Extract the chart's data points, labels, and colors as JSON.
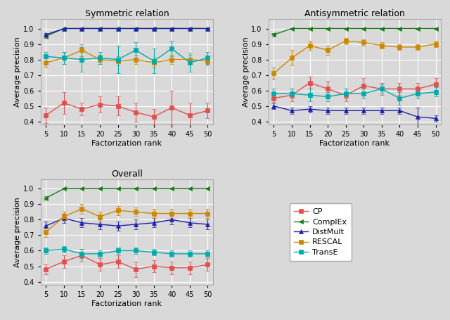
{
  "ranks": [
    5,
    10,
    15,
    20,
    25,
    30,
    35,
    40,
    45,
    50
  ],
  "symmetric": {
    "CP": {
      "y": [
        0.44,
        0.52,
        0.48,
        0.51,
        0.5,
        0.46,
        0.43,
        0.49,
        0.44,
        0.47
      ],
      "yerr": [
        0.05,
        0.07,
        0.04,
        0.05,
        0.06,
        0.06,
        0.05,
        0.11,
        0.08,
        0.05
      ]
    },
    "ComplEx": {
      "y": [
        0.95,
        1.0,
        1.0,
        1.0,
        1.0,
        1.0,
        1.0,
        1.0,
        1.0,
        1.0
      ],
      "yerr": [
        0.01,
        0.0,
        0.0,
        0.0,
        0.0,
        0.0,
        0.0,
        0.0,
        0.0,
        0.0
      ]
    },
    "DistMult": {
      "y": [
        0.96,
        1.0,
        1.0,
        1.0,
        1.0,
        1.0,
        1.0,
        1.0,
        1.0,
        1.0
      ],
      "yerr": [
        0.01,
        0.0,
        0.0,
        0.0,
        0.0,
        0.0,
        0.0,
        0.0,
        0.0,
        0.0
      ]
    },
    "RESCAL": {
      "y": [
        0.78,
        0.81,
        0.86,
        0.8,
        0.79,
        0.8,
        0.78,
        0.8,
        0.8,
        0.79
      ],
      "yerr": [
        0.03,
        0.04,
        0.04,
        0.03,
        0.03,
        0.03,
        0.03,
        0.03,
        0.03,
        0.03
      ]
    },
    "TransE": {
      "y": [
        0.82,
        0.81,
        0.8,
        0.81,
        0.8,
        0.86,
        0.79,
        0.87,
        0.78,
        0.81
      ],
      "yerr": [
        0.03,
        0.04,
        0.08,
        0.04,
        0.09,
        0.05,
        0.08,
        0.05,
        0.06,
        0.04
      ]
    }
  },
  "antisymmetric": {
    "CP": {
      "y": [
        0.55,
        0.57,
        0.65,
        0.61,
        0.57,
        0.63,
        0.61,
        0.61,
        0.61,
        0.64
      ],
      "yerr": [
        0.03,
        0.04,
        0.04,
        0.05,
        0.04,
        0.05,
        0.04,
        0.04,
        0.04,
        0.04
      ]
    },
    "ComplEx": {
      "y": [
        0.96,
        1.0,
        1.0,
        1.0,
        1.0,
        1.0,
        1.0,
        1.0,
        1.0,
        1.0
      ],
      "yerr": [
        0.01,
        0.0,
        0.0,
        0.0,
        0.0,
        0.0,
        0.0,
        0.0,
        0.0,
        0.0
      ]
    },
    "DistMult": {
      "y": [
        0.5,
        0.47,
        0.48,
        0.47,
        0.47,
        0.47,
        0.47,
        0.47,
        0.43,
        0.42
      ],
      "yerr": [
        0.02,
        0.02,
        0.02,
        0.02,
        0.02,
        0.02,
        0.02,
        0.02,
        0.06,
        0.02
      ]
    },
    "RESCAL": {
      "y": [
        0.71,
        0.81,
        0.89,
        0.86,
        0.92,
        0.91,
        0.89,
        0.88,
        0.88,
        0.9
      ],
      "yerr": [
        0.04,
        0.05,
        0.03,
        0.03,
        0.02,
        0.02,
        0.02,
        0.02,
        0.02,
        0.02
      ]
    },
    "TransE": {
      "y": [
        0.58,
        0.58,
        0.57,
        0.56,
        0.58,
        0.58,
        0.61,
        0.55,
        0.58,
        0.59
      ],
      "yerr": [
        0.03,
        0.03,
        0.04,
        0.03,
        0.03,
        0.03,
        0.03,
        0.04,
        0.03,
        0.03
      ]
    }
  },
  "overall": {
    "CP": {
      "y": [
        0.48,
        0.53,
        0.57,
        0.51,
        0.53,
        0.48,
        0.5,
        0.49,
        0.49,
        0.51
      ],
      "yerr": [
        0.03,
        0.04,
        0.04,
        0.04,
        0.04,
        0.05,
        0.04,
        0.04,
        0.04,
        0.04
      ]
    },
    "ComplEx": {
      "y": [
        0.94,
        1.0,
        1.0,
        1.0,
        1.0,
        1.0,
        1.0,
        1.0,
        1.0,
        1.0
      ],
      "yerr": [
        0.01,
        0.0,
        0.0,
        0.0,
        0.0,
        0.0,
        0.0,
        0.0,
        0.0,
        0.0
      ]
    },
    "DistMult": {
      "y": [
        0.76,
        0.81,
        0.78,
        0.77,
        0.76,
        0.77,
        0.78,
        0.8,
        0.78,
        0.77
      ],
      "yerr": [
        0.03,
        0.03,
        0.03,
        0.03,
        0.03,
        0.03,
        0.03,
        0.03,
        0.03,
        0.03
      ]
    },
    "RESCAL": {
      "y": [
        0.72,
        0.82,
        0.87,
        0.82,
        0.86,
        0.85,
        0.84,
        0.84,
        0.84,
        0.84
      ],
      "yerr": [
        0.03,
        0.03,
        0.03,
        0.03,
        0.03,
        0.03,
        0.03,
        0.03,
        0.03,
        0.03
      ]
    },
    "TransE": {
      "y": [
        0.6,
        0.61,
        0.58,
        0.58,
        0.6,
        0.6,
        0.59,
        0.58,
        0.58,
        0.58
      ],
      "yerr": [
        0.02,
        0.02,
        0.03,
        0.02,
        0.02,
        0.02,
        0.02,
        0.02,
        0.02,
        0.02
      ]
    }
  },
  "models": [
    "CP",
    "ComplEx",
    "DistMult",
    "RESCAL",
    "TransE"
  ],
  "colors": {
    "CP": "#e05050",
    "ComplEx": "#1a7a1a",
    "DistMult": "#2020aa",
    "RESCAL": "#cc8800",
    "TransE": "#00aaaa"
  },
  "markers": {
    "CP": "s",
    "ComplEx": "<",
    "DistMult": "^",
    "RESCAL": "s",
    "TransE": "s"
  },
  "marker_sizes": {
    "CP": 4,
    "ComplEx": 5,
    "DistMult": 5,
    "RESCAL": 5,
    "TransE": 4
  },
  "titles": [
    "Symmetric relation",
    "Antisymmetric relation",
    "Overall"
  ],
  "xlabel": "Factorization rank",
  "ylabel": "Average precision",
  "ylim": [
    0.38,
    1.06
  ],
  "yticks": [
    0.4,
    0.5,
    0.6,
    0.7,
    0.8,
    0.9,
    1.0
  ],
  "background_color": "#d9d9d9",
  "axes_bg": "#d9d9d9",
  "grid_color": "#ffffff",
  "legend_title": null
}
